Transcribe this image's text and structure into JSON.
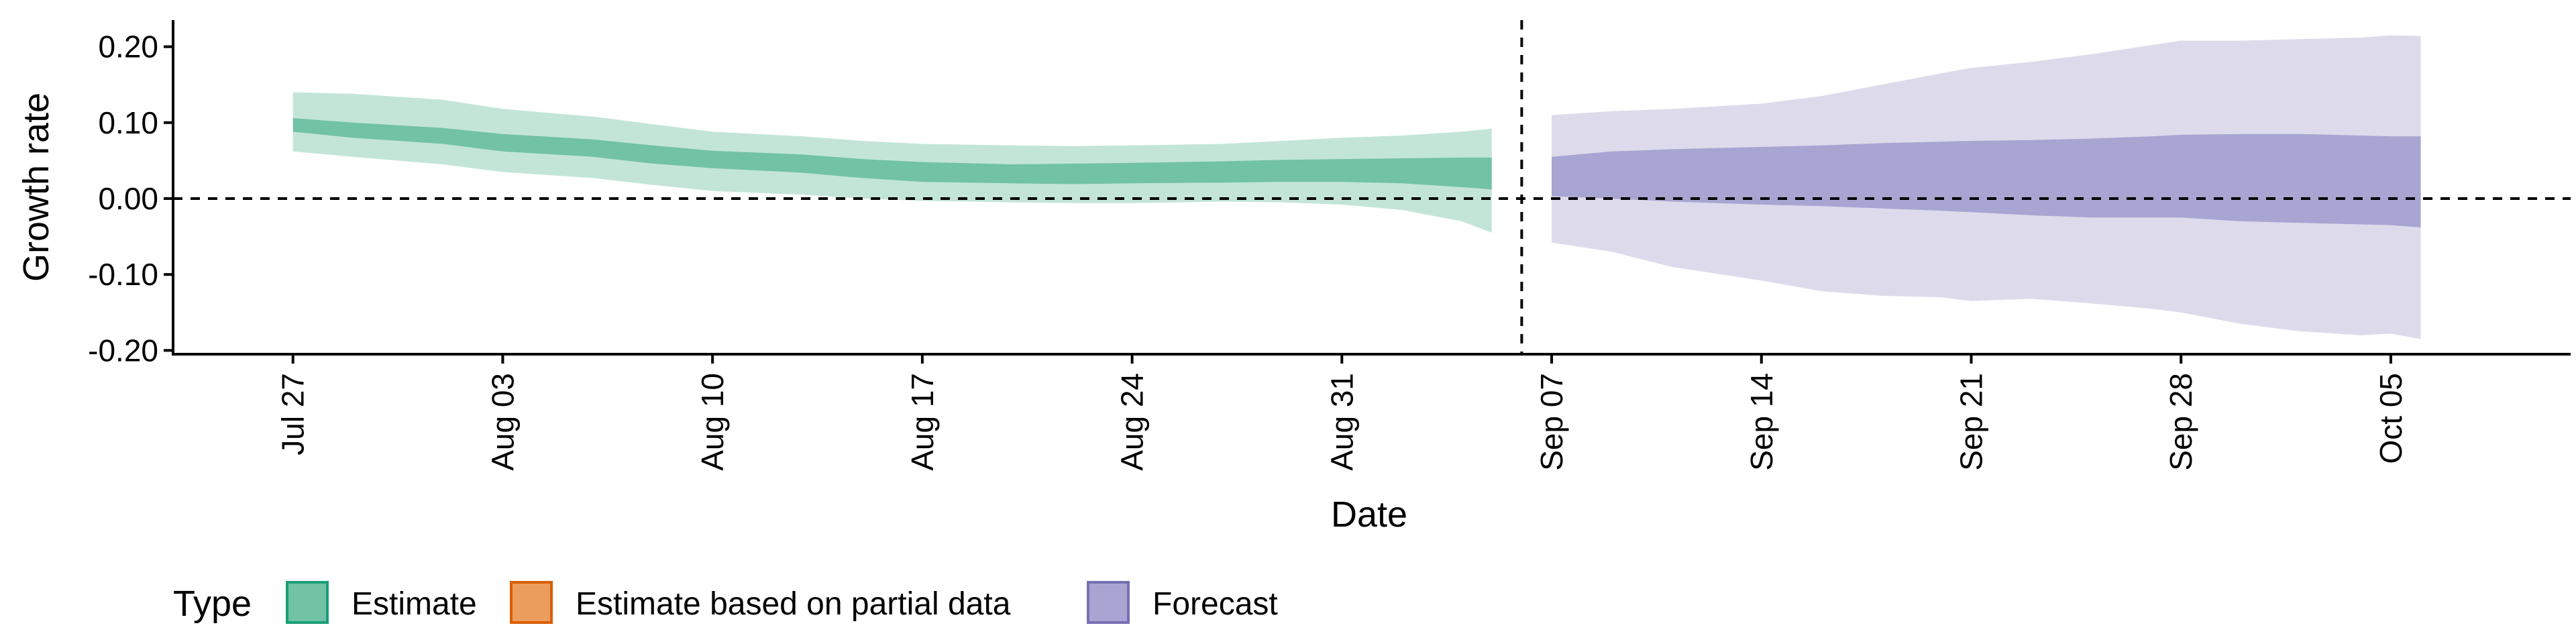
{
  "chart_data": {
    "type": "area",
    "xlabel": "Date",
    "ylabel": "Growth rate",
    "ylim": [
      -0.205,
      0.235
    ],
    "xlim": [
      "2020-07-23",
      "2020-10-11"
    ],
    "y_ticks": [
      {
        "value": 0.2,
        "label": "0.20"
      },
      {
        "value": 0.1,
        "label": "0.10"
      },
      {
        "value": 0.0,
        "label": "0.00"
      },
      {
        "value": -0.1,
        "label": "-0.10"
      },
      {
        "value": -0.2,
        "label": "-0.20"
      }
    ],
    "x_ticks": [
      {
        "date": "2020-07-27",
        "label": "Jul 27"
      },
      {
        "date": "2020-08-03",
        "label": "Aug 03"
      },
      {
        "date": "2020-08-10",
        "label": "Aug 10"
      },
      {
        "date": "2020-08-17",
        "label": "Aug 17"
      },
      {
        "date": "2020-08-24",
        "label": "Aug 24"
      },
      {
        "date": "2020-08-31",
        "label": "Aug 31"
      },
      {
        "date": "2020-09-07",
        "label": "Sep 07"
      },
      {
        "date": "2020-09-14",
        "label": "Sep 14"
      },
      {
        "date": "2020-09-21",
        "label": "Sep 21"
      },
      {
        "date": "2020-09-28",
        "label": "Sep 28"
      },
      {
        "date": "2020-10-05",
        "label": "Oct 05"
      }
    ],
    "reference_lines": {
      "horizontal_y": 0.0,
      "vertical_date": "2020-09-06"
    },
    "legend": {
      "title": "Type",
      "position": "bottom-left",
      "items": [
        {
          "label": "Estimate",
          "fill": "#72c2a6",
          "stroke": "#1b9e77"
        },
        {
          "label": "Estimate based on partial data",
          "fill": "#eb9d5d",
          "stroke": "#d95f02"
        },
        {
          "label": "Forecast",
          "fill": "#a8a5d3",
          "stroke": "#7570b3"
        }
      ]
    },
    "series": [
      {
        "name": "Estimate",
        "outer_color": "#c3e5d8",
        "inner_color": "#72c2a6",
        "dates": [
          "2020-07-27",
          "2020-07-29",
          "2020-08-01",
          "2020-08-03",
          "2020-08-06",
          "2020-08-08",
          "2020-08-10",
          "2020-08-13",
          "2020-08-15",
          "2020-08-17",
          "2020-08-20",
          "2020-08-22",
          "2020-08-24",
          "2020-08-27",
          "2020-08-29",
          "2020-08-31",
          "2020-09-02",
          "2020-09-04",
          "2020-09-05"
        ],
        "outer_lower": [
          0.062,
          0.055,
          0.045,
          0.035,
          0.027,
          0.018,
          0.01,
          0.005,
          0.0,
          -0.003,
          -0.005,
          -0.006,
          -0.006,
          -0.004,
          -0.005,
          -0.008,
          -0.015,
          -0.03,
          -0.045
        ],
        "outer_upper": [
          0.14,
          0.138,
          0.13,
          0.118,
          0.108,
          0.098,
          0.088,
          0.082,
          0.076,
          0.072,
          0.07,
          0.069,
          0.07,
          0.072,
          0.076,
          0.08,
          0.083,
          0.088,
          0.092
        ],
        "inner_lower": [
          0.088,
          0.08,
          0.072,
          0.062,
          0.055,
          0.046,
          0.04,
          0.034,
          0.027,
          0.022,
          0.02,
          0.019,
          0.02,
          0.021,
          0.022,
          0.022,
          0.02,
          0.015,
          0.012
        ],
        "inner_upper": [
          0.106,
          0.1,
          0.093,
          0.085,
          0.078,
          0.07,
          0.063,
          0.058,
          0.052,
          0.048,
          0.045,
          0.046,
          0.047,
          0.049,
          0.051,
          0.052,
          0.053,
          0.054,
          0.054
        ]
      },
      {
        "name": "Forecast",
        "outer_color": "#dddbeb",
        "inner_color": "#a8a5d3",
        "dates": [
          "2020-09-07",
          "2020-09-09",
          "2020-09-11",
          "2020-09-14",
          "2020-09-16",
          "2020-09-18",
          "2020-09-20",
          "2020-09-21",
          "2020-09-23",
          "2020-09-25",
          "2020-09-27",
          "2020-09-28",
          "2020-09-30",
          "2020-10-02",
          "2020-10-04",
          "2020-10-05",
          "2020-10-06"
        ],
        "outer_lower": [
          -0.058,
          -0.07,
          -0.09,
          -0.108,
          -0.122,
          -0.128,
          -0.13,
          -0.135,
          -0.132,
          -0.138,
          -0.145,
          -0.15,
          -0.165,
          -0.175,
          -0.18,
          -0.178,
          -0.185
        ],
        "outer_upper": [
          0.11,
          0.115,
          0.118,
          0.125,
          0.135,
          0.15,
          0.165,
          0.172,
          0.18,
          0.19,
          0.202,
          0.208,
          0.208,
          0.21,
          0.212,
          0.215,
          0.214
        ],
        "inner_lower": [
          0.003,
          0.0,
          -0.004,
          -0.008,
          -0.01,
          -0.013,
          -0.016,
          -0.018,
          -0.022,
          -0.025,
          -0.025,
          -0.025,
          -0.03,
          -0.032,
          -0.034,
          -0.035,
          -0.038
        ],
        "inner_upper": [
          0.055,
          0.062,
          0.065,
          0.068,
          0.07,
          0.073,
          0.075,
          0.076,
          0.077,
          0.079,
          0.082,
          0.084,
          0.085,
          0.085,
          0.083,
          0.082,
          0.082
        ]
      }
    ]
  }
}
